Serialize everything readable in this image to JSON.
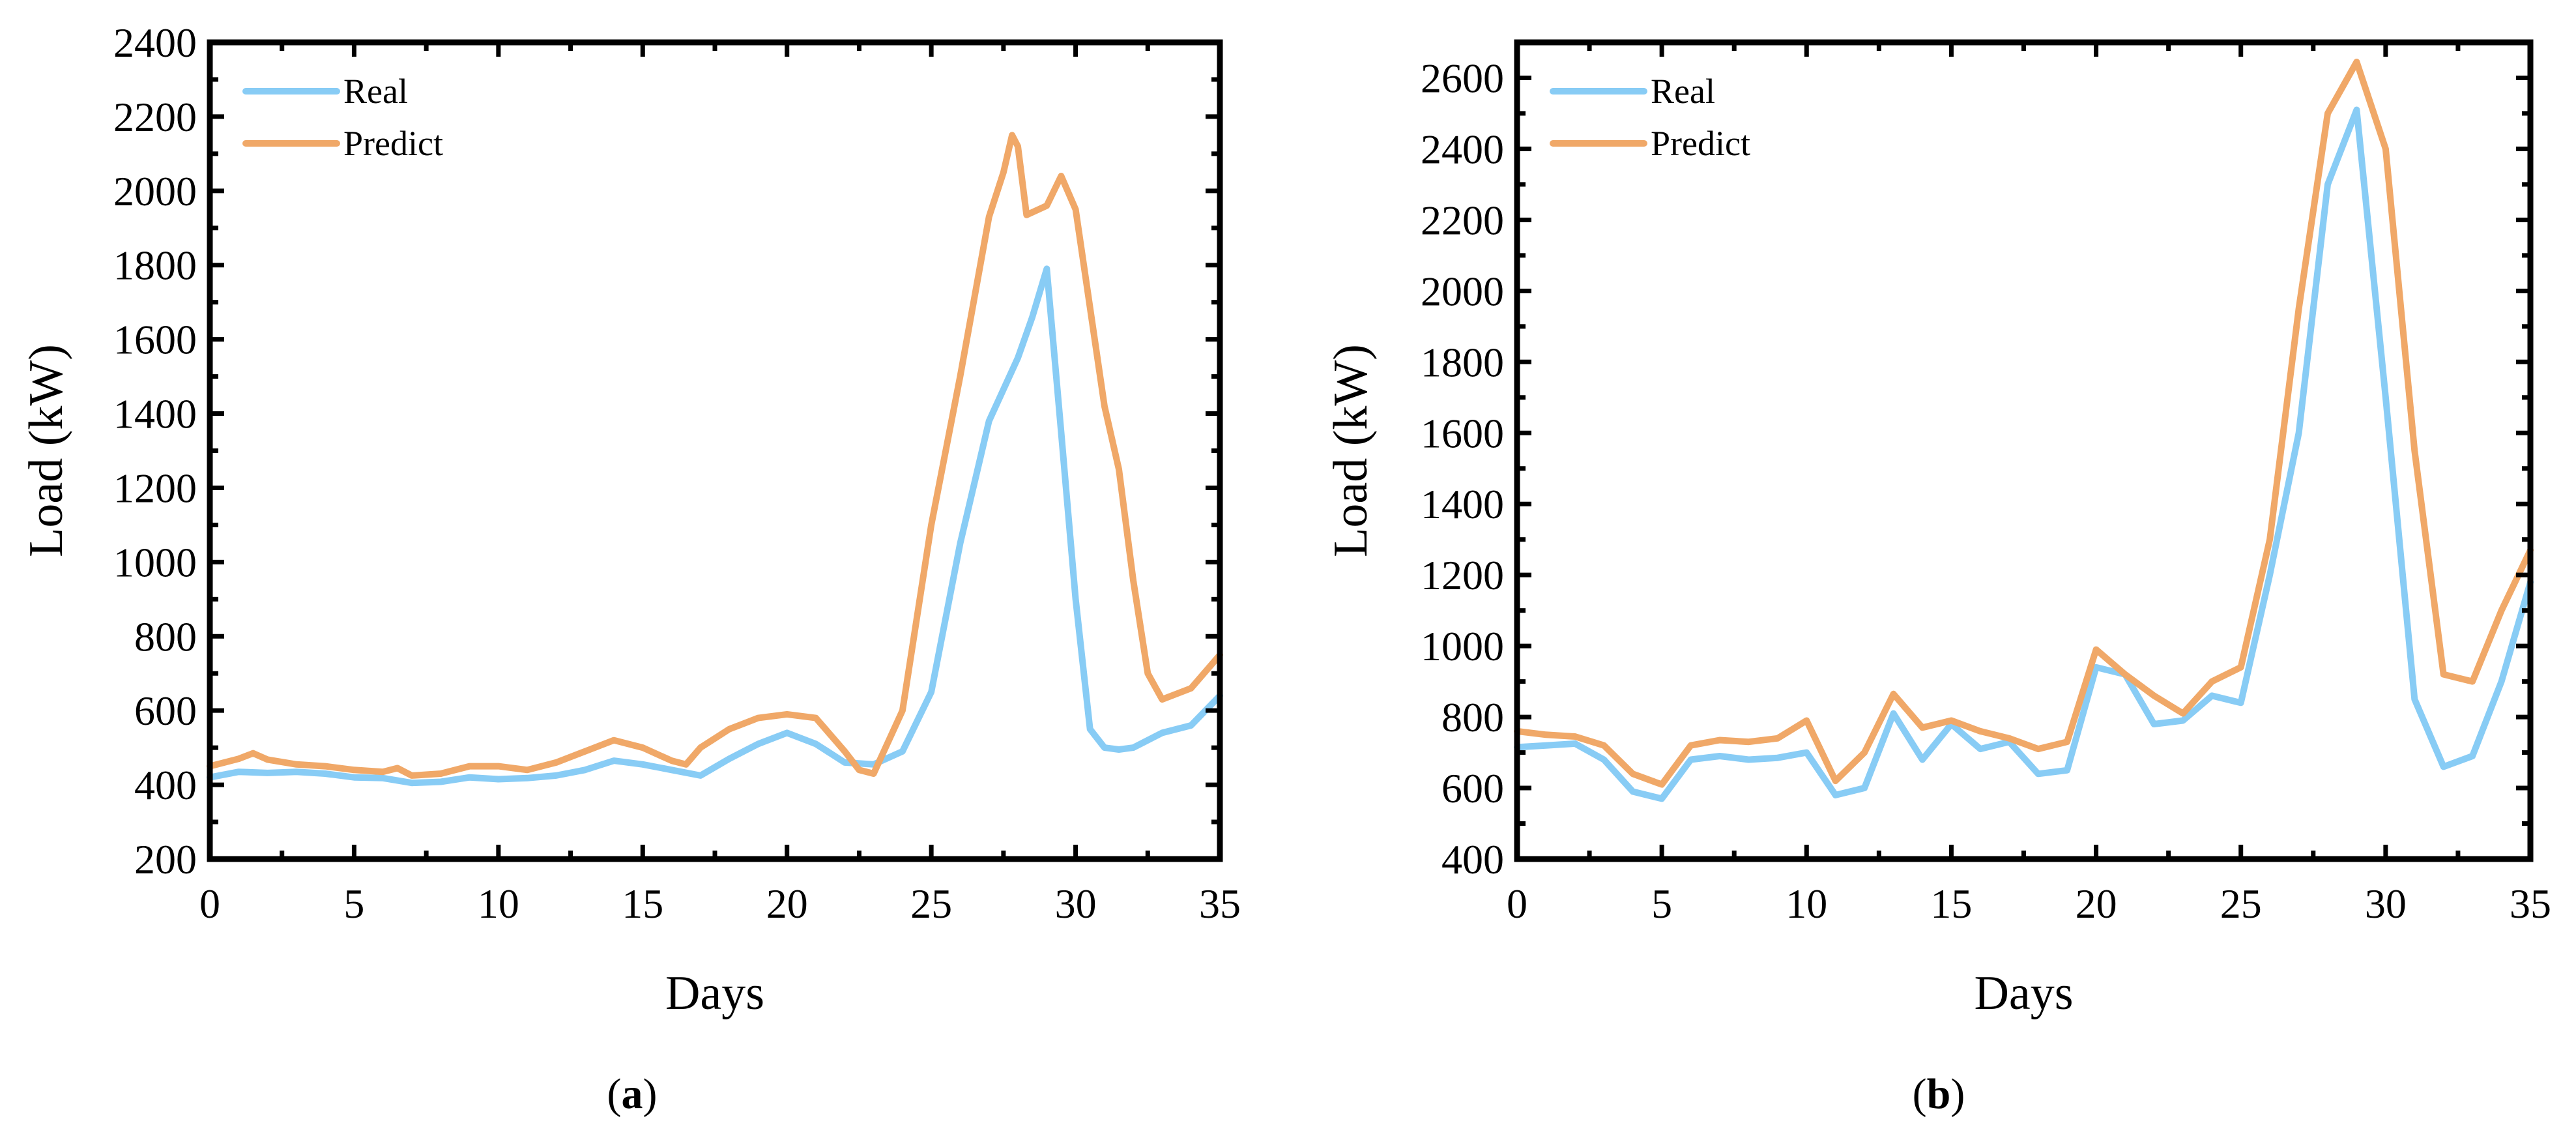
{
  "colors": {
    "real": "#88CCF5",
    "predict": "#F0A868",
    "axis": "#000000"
  },
  "chart_data": [
    {
      "type": "line",
      "caption_letter": "a",
      "xlabel": "Days",
      "ylabel": "Load (kW)",
      "xlim": [
        0,
        35
      ],
      "ylim": [
        200,
        2400
      ],
      "xticks": [
        0,
        5,
        10,
        15,
        20,
        25,
        30,
        35
      ],
      "yticks": [
        200,
        400,
        600,
        800,
        1000,
        1200,
        1400,
        1600,
        1800,
        2000,
        2200,
        2400
      ],
      "grid": false,
      "legend_position": "top-left",
      "series": [
        {
          "name": "Real",
          "x": [
            0,
            1,
            2,
            3,
            4,
            5,
            6,
            7,
            8,
            9,
            10,
            11,
            12,
            13,
            14,
            15,
            16,
            17,
            18,
            19,
            20,
            21,
            22,
            23,
            24,
            25,
            26,
            27,
            28,
            28.5,
            29,
            29.5,
            30,
            30.5,
            31,
            31.5,
            32,
            33,
            34,
            35
          ],
          "y": [
            420,
            435,
            432,
            435,
            430,
            420,
            418,
            405,
            408,
            420,
            415,
            418,
            425,
            440,
            465,
            455,
            440,
            425,
            470,
            510,
            540,
            510,
            460,
            455,
            490,
            650,
            1050,
            1380,
            1550,
            1660,
            1790,
            1350,
            900,
            550,
            500,
            495,
            500,
            540,
            560,
            640
          ]
        },
        {
          "name": "Predict",
          "x": [
            0,
            1,
            1.5,
            2,
            3,
            4,
            5,
            6,
            6.5,
            7,
            8,
            9,
            10,
            11,
            12,
            13,
            14,
            15,
            16,
            16.5,
            17,
            18,
            19,
            20,
            21,
            22,
            22.5,
            23,
            24,
            25,
            26,
            27,
            27.5,
            27.8,
            28,
            28.3,
            29,
            29.5,
            30,
            31,
            31.5,
            32,
            32.5,
            33,
            34,
            35
          ],
          "y": [
            450,
            470,
            485,
            468,
            455,
            450,
            440,
            435,
            445,
            425,
            430,
            450,
            450,
            440,
            460,
            490,
            520,
            500,
            465,
            455,
            500,
            550,
            580,
            590,
            580,
            490,
            440,
            430,
            600,
            1100,
            1500,
            1930,
            2050,
            2150,
            2120,
            1935,
            1960,
            2040,
            1950,
            1420,
            1250,
            950,
            700,
            630,
            660,
            750
          ]
        }
      ]
    },
    {
      "type": "line",
      "caption_letter": "b",
      "xlabel": "Days",
      "ylabel": "Load (kW)",
      "xlim": [
        0,
        35
      ],
      "ylim": [
        400,
        2700
      ],
      "xticks": [
        0,
        5,
        10,
        15,
        20,
        25,
        30,
        35
      ],
      "yticks": [
        400,
        600,
        800,
        1000,
        1200,
        1400,
        1600,
        1800,
        2000,
        2200,
        2400,
        2600
      ],
      "grid": false,
      "legend_position": "top-left",
      "series": [
        {
          "name": "Real",
          "x": [
            0,
            1,
            2,
            3,
            4,
            5,
            6,
            7,
            8,
            9,
            10,
            11,
            12,
            13,
            14,
            15,
            16,
            17,
            18,
            19,
            20,
            21,
            22,
            23,
            24,
            25,
            26,
            27,
            28,
            29,
            30,
            31,
            32,
            33,
            34,
            35
          ],
          "y": [
            715,
            720,
            725,
            680,
            590,
            570,
            680,
            690,
            680,
            685,
            700,
            580,
            600,
            810,
            680,
            780,
            710,
            730,
            640,
            650,
            940,
            920,
            780,
            790,
            860,
            840,
            1200,
            1600,
            2300,
            2510,
            1700,
            850,
            660,
            690,
            900,
            1180
          ]
        },
        {
          "name": "Predict",
          "x": [
            0,
            1,
            2,
            3,
            4,
            5,
            6,
            7,
            8,
            9,
            10,
            11,
            12,
            13,
            14,
            15,
            16,
            17,
            18,
            19,
            20,
            21,
            22,
            23,
            24,
            25,
            26,
            27,
            28,
            29,
            30,
            31,
            32,
            33,
            34,
            35
          ],
          "y": [
            760,
            750,
            745,
            720,
            640,
            610,
            720,
            735,
            730,
            740,
            790,
            620,
            700,
            865,
            770,
            790,
            760,
            740,
            710,
            730,
            990,
            920,
            860,
            810,
            900,
            940,
            1300,
            1950,
            2500,
            2645,
            2400,
            1550,
            920,
            900,
            1100,
            1270
          ]
        }
      ]
    }
  ]
}
